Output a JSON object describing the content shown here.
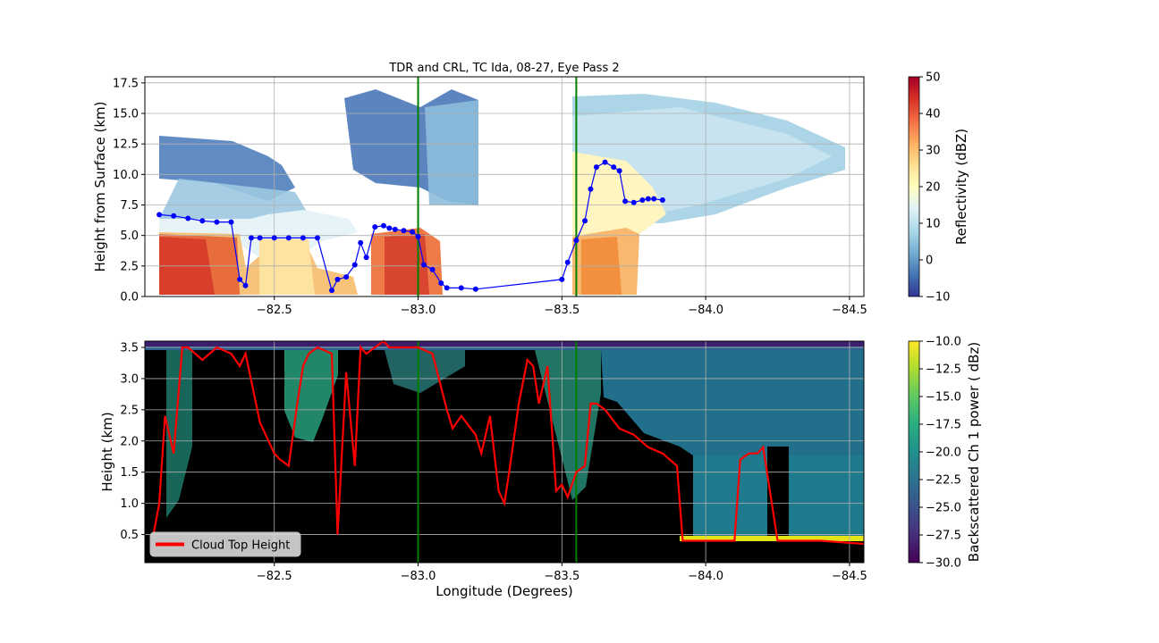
{
  "chart_data": [
    {
      "type": "heatmap",
      "title": "TDR and CRL, TC Ida, 08-27, Eye Pass 2",
      "xlabel": "",
      "ylabel": "Height from Surface (km)",
      "xlim": [
        -82.05,
        -84.55
      ],
      "ylim": [
        0,
        18
      ],
      "x_ticks": [
        -82.5,
        -83.0,
        -83.5,
        -84.0,
        -84.5
      ],
      "x_tick_labels": [
        "−82.5",
        "−83.0",
        "−83.5",
        "−84.0",
        "−84.5"
      ],
      "y_ticks": [
        0,
        2.5,
        5,
        7.5,
        10,
        12.5,
        15,
        17.5
      ],
      "y_tick_labels": [
        "0.0",
        "2.5",
        "5.0",
        "7.5",
        "10.0",
        "12.5",
        "15.0",
        "17.5"
      ],
      "grid": true,
      "vertical_lines": [
        -83.0,
        -83.55
      ],
      "colorbar": {
        "label": "Reflectivity (dBZ)",
        "range": [
          -10,
          50
        ],
        "ticks": [
          -10,
          0,
          10,
          20,
          30,
          40,
          50
        ],
        "tick_labels": [
          "−10",
          "0",
          "10",
          "20",
          "30",
          "40",
          "50"
        ],
        "colormap": [
          "#313695",
          "#4575b4",
          "#74add1",
          "#abd9e9",
          "#e0f3f8",
          "#ffffbf",
          "#fee090",
          "#fdae61",
          "#f46d43",
          "#d73027",
          "#a50026"
        ]
      },
      "series": [
        {
          "name": "Echo top",
          "color": "#0000ff",
          "x": [
            -82.1,
            -82.15,
            -82.2,
            -82.25,
            -82.3,
            -82.35,
            -82.38,
            -82.4,
            -82.42,
            -82.45,
            -82.5,
            -82.55,
            -82.6,
            -82.65,
            -82.7,
            -82.72,
            -82.75,
            -82.78,
            -82.8,
            -82.82,
            -82.85,
            -82.88,
            -82.9,
            -82.92,
            -82.95,
            -82.98,
            -83.0,
            -83.02,
            -83.05,
            -83.08,
            -83.1,
            -83.15,
            -83.2,
            -83.5,
            -83.52,
            -83.55,
            -83.58,
            -83.6,
            -83.62,
            -83.65,
            -83.68,
            -83.7,
            -83.72,
            -83.75,
            -83.78,
            -83.8,
            -83.82,
            -83.85
          ],
          "y": [
            6.7,
            6.6,
            6.4,
            6.2,
            6.1,
            6.1,
            1.4,
            0.9,
            4.8,
            4.8,
            4.8,
            4.8,
            4.8,
            4.8,
            0.5,
            1.4,
            1.6,
            2.6,
            4.4,
            3.2,
            5.7,
            5.8,
            5.6,
            5.5,
            5.4,
            5.3,
            4.9,
            2.6,
            2.2,
            1.1,
            0.7,
            0.7,
            0.6,
            1.4,
            2.8,
            4.6,
            6.2,
            8.8,
            10.6,
            11.0,
            10.6,
            10.3,
            7.8,
            7.7,
            7.9,
            8.0,
            8.0,
            7.9
          ]
        }
      ]
    },
    {
      "type": "heatmap",
      "title": "",
      "xlabel": "Longitude (Degrees)",
      "ylabel": "Height (km)",
      "xlim": [
        -82.05,
        -84.55
      ],
      "ylim": [
        0.05,
        3.6
      ],
      "x_ticks": [
        -82.5,
        -83.0,
        -83.5,
        -84.0,
        -84.5
      ],
      "x_tick_labels": [
        "−82.5",
        "−83.0",
        "−83.5",
        "−84.0",
        "−84.5"
      ],
      "y_ticks": [
        0.5,
        1.0,
        1.5,
        2.0,
        2.5,
        3.0,
        3.5
      ],
      "y_tick_labels": [
        "0.5",
        "1.0",
        "1.5",
        "2.0",
        "2.5",
        "3.0",
        "3.5"
      ],
      "grid": true,
      "vertical_lines": [
        -83.0,
        -83.55
      ],
      "legend": {
        "position": "lower-left",
        "label": "Cloud Top Height"
      },
      "colorbar": {
        "label": "Backscattered Ch 1 power ( dBz)",
        "range": [
          -30,
          -10
        ],
        "ticks": [
          -30,
          -27.5,
          -25,
          -22.5,
          -20,
          -17.5,
          -15,
          -12.5,
          -10
        ],
        "tick_labels": [
          "−30.0",
          "−27.5",
          "−25.0",
          "−22.5",
          "−20.0",
          "−17.5",
          "−15.0",
          "−12.5",
          "−10.0"
        ],
        "colormap": [
          "#440154",
          "#472d7b",
          "#3b528b",
          "#2c728e",
          "#21918c",
          "#28ae80",
          "#5ec962",
          "#addc30",
          "#fde725"
        ]
      },
      "series": [
        {
          "name": "Cloud Top Height",
          "color": "#ff0000",
          "x": [
            -82.08,
            -82.1,
            -82.12,
            -82.15,
            -82.18,
            -82.2,
            -82.25,
            -82.3,
            -82.35,
            -82.38,
            -82.4,
            -82.45,
            -82.48,
            -82.5,
            -82.52,
            -82.55,
            -82.58,
            -82.6,
            -82.62,
            -82.65,
            -82.7,
            -82.72,
            -82.75,
            -82.78,
            -82.8,
            -82.82,
            -82.85,
            -82.88,
            -82.9,
            -82.95,
            -83.0,
            -83.05,
            -83.1,
            -83.12,
            -83.15,
            -83.2,
            -83.22,
            -83.25,
            -83.28,
            -83.3,
            -83.32,
            -83.35,
            -83.38,
            -83.4,
            -83.42,
            -83.45,
            -83.48,
            -83.5,
            -83.52,
            -83.55,
            -83.58,
            -83.6,
            -83.62,
            -83.65,
            -83.7,
            -83.75,
            -83.8,
            -83.85,
            -83.9,
            -83.92,
            -84.1,
            -84.12,
            -84.15,
            -84.18,
            -84.2,
            -84.25,
            -84.3,
            -84.4,
            -84.55
          ],
          "y": [
            0.5,
            1.0,
            2.4,
            1.8,
            3.5,
            3.5,
            3.3,
            3.5,
            3.4,
            3.2,
            3.4,
            2.3,
            2.0,
            1.8,
            1.7,
            1.6,
            2.6,
            3.2,
            3.4,
            3.5,
            3.4,
            0.5,
            3.1,
            1.6,
            3.5,
            3.4,
            3.5,
            3.6,
            3.5,
            3.5,
            3.5,
            3.4,
            2.5,
            2.2,
            2.4,
            2.1,
            1.8,
            2.4,
            1.2,
            1.0,
            1.6,
            2.6,
            3.3,
            3.2,
            2.6,
            3.2,
            1.2,
            1.3,
            1.1,
            1.5,
            1.6,
            2.6,
            2.6,
            2.5,
            2.2,
            2.1,
            1.9,
            1.8,
            1.6,
            0.4,
            0.4,
            1.7,
            1.8,
            1.8,
            1.9,
            0.4,
            0.4,
            0.4,
            0.35
          ]
        }
      ]
    }
  ]
}
